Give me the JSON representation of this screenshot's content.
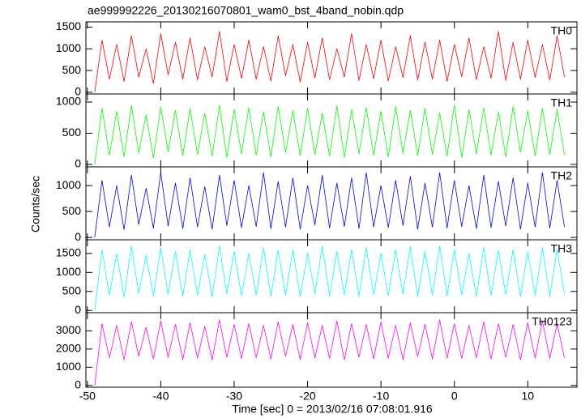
{
  "chart_data": [
    {
      "type": "line",
      "title": "ae999992226_20130216070801_wam0_bst_4band_nobin.qdp",
      "x": [
        -49,
        -48,
        -47,
        -46,
        -45,
        -44,
        -43,
        -42,
        -41,
        -40,
        -39,
        -38,
        -37,
        -36,
        -35,
        -34,
        -33,
        -32,
        -31,
        -30,
        -29,
        -28,
        -27,
        -26,
        -25,
        -24,
        -23,
        -22,
        -21,
        -20,
        -19,
        -18,
        -17,
        -16,
        -15,
        -14,
        -13,
        -12,
        -11,
        -10,
        -9,
        -8,
        -7,
        -6,
        -5,
        -4,
        -3,
        -2,
        -1,
        0,
        1,
        2,
        3,
        4,
        5,
        6,
        7,
        8,
        9,
        10,
        11,
        12,
        13,
        14,
        15
      ],
      "series": [
        {
          "name": "TH0",
          "color": "#ff0000",
          "values": [
            0,
            1200,
            300,
            1100,
            250,
            1300,
            350,
            1000,
            200,
            1350,
            400,
            1150,
            300,
            1250,
            280,
            1050,
            350,
            1400,
            250,
            1100,
            320,
            1200,
            300,
            1050,
            260,
            1300,
            380,
            1100,
            240,
            1150,
            330,
            1250,
            290,
            1000,
            350,
            1350,
            270,
            1100,
            310,
            1200,
            260,
            1050,
            340,
            1300,
            280,
            1150,
            300,
            1200,
            250,
            1100,
            360,
            1250,
            290,
            1050,
            320,
            1400,
            270,
            1150,
            300,
            1200,
            340,
            1100,
            280,
            1300,
            350
          ]
        }
      ],
      "xlim": [
        -50.2,
        16.7
      ],
      "xticks": [
        -50,
        -40,
        -30,
        -20,
        -10,
        0,
        10
      ],
      "ylim": [
        -40,
        1620
      ],
      "yticks": [
        0,
        500,
        1000,
        1500
      ]
    },
    {
      "type": "line",
      "x": [
        -49,
        -48,
        -47,
        -46,
        -45,
        -44,
        -43,
        -42,
        -41,
        -40,
        -39,
        -38,
        -37,
        -36,
        -35,
        -34,
        -33,
        -32,
        -31,
        -30,
        -29,
        -28,
        -27,
        -26,
        -25,
        -24,
        -23,
        -22,
        -21,
        -20,
        -19,
        -18,
        -17,
        -16,
        -15,
        -14,
        -13,
        -12,
        -11,
        -10,
        -9,
        -8,
        -7,
        -6,
        -5,
        -4,
        -3,
        -2,
        -1,
        0,
        1,
        2,
        3,
        4,
        5,
        6,
        7,
        8,
        9,
        10,
        11,
        12,
        13,
        14,
        15
      ],
      "series": [
        {
          "name": "TH1",
          "color": "#00ff00",
          "values": [
            0,
            900,
            150,
            850,
            120,
            950,
            180,
            800,
            100,
            920,
            200,
            870,
            140,
            900,
            160,
            820,
            130,
            950,
            110,
            880,
            170,
            910,
            150,
            840,
            120,
            930,
            190,
            860,
            140,
            900,
            160,
            820,
            130,
            940,
            110,
            880,
            170,
            910,
            150,
            850,
            120,
            930,
            180,
            870,
            140,
            900,
            160,
            820,
            130,
            950,
            110,
            880,
            170,
            910,
            150,
            840,
            120,
            930,
            190,
            860,
            140,
            900,
            160,
            880,
            150
          ]
        }
      ],
      "xlim": [
        -50.2,
        16.7
      ],
      "xticks": [
        -50,
        -40,
        -30,
        -20,
        -10,
        0,
        10
      ],
      "ylim": [
        -40,
        1130
      ],
      "yticks": [
        0,
        500,
        1000
      ]
    },
    {
      "type": "line",
      "y_label": "Counts/sec",
      "x": [
        -49,
        -48,
        -47,
        -46,
        -45,
        -44,
        -43,
        -42,
        -41,
        -40,
        -39,
        -38,
        -37,
        -36,
        -35,
        -34,
        -33,
        -32,
        -31,
        -30,
        -29,
        -28,
        -27,
        -26,
        -25,
        -24,
        -23,
        -22,
        -21,
        -20,
        -19,
        -18,
        -17,
        -16,
        -15,
        -14,
        -13,
        -12,
        -11,
        -10,
        -9,
        -8,
        -7,
        -6,
        -5,
        -4,
        -3,
        -2,
        -1,
        0,
        1,
        2,
        3,
        4,
        5,
        6,
        7,
        8,
        9,
        10,
        11,
        12,
        13,
        14,
        15
      ],
      "series": [
        {
          "name": "TH2",
          "color": "#0000ff",
          "values": [
            0,
            1100,
            200,
            1000,
            150,
            1200,
            250,
            950,
            180,
            1250,
            220,
            1050,
            170,
            1150,
            200,
            980,
            160,
            1200,
            230,
            1100,
            190,
            1000,
            210,
            1250,
            170,
            1080,
            200,
            1150,
            160,
            1000,
            240,
            1200,
            180,
            1050,
            210,
            1150,
            170,
            1250,
            200,
            1000,
            190,
            1100,
            230,
            1180,
            160,
            1050,
            200,
            1250,
            180,
            1100,
            210,
            1000,
            170,
            1200,
            190,
            1080,
            220,
            1150,
            160,
            1050,
            200,
            1250,
            180,
            1100,
            200
          ]
        }
      ],
      "xlim": [
        -50.2,
        16.7
      ],
      "xticks": [
        -50,
        -40,
        -30,
        -20,
        -10,
        0,
        10
      ],
      "ylim": [
        -45,
        1360
      ],
      "yticks": [
        0,
        500,
        1000
      ]
    },
    {
      "type": "line",
      "x": [
        -49,
        -48,
        -47,
        -46,
        -45,
        -44,
        -43,
        -42,
        -41,
        -40,
        -39,
        -38,
        -37,
        -36,
        -35,
        -34,
        -33,
        -32,
        -31,
        -30,
        -29,
        -28,
        -27,
        -26,
        -25,
        -24,
        -23,
        -22,
        -21,
        -20,
        -19,
        -18,
        -17,
        -16,
        -15,
        -14,
        -13,
        -12,
        -11,
        -10,
        -9,
        -8,
        -7,
        -6,
        -5,
        -4,
        -3,
        -2,
        -1,
        0,
        1,
        2,
        3,
        4,
        5,
        6,
        7,
        8,
        9,
        10,
        11,
        12,
        13,
        14,
        15
      ],
      "series": [
        {
          "name": "TH3",
          "color": "#00ffff",
          "values": [
            0,
            1600,
            400,
            1500,
            350,
            1700,
            450,
            1450,
            380,
            1650,
            420,
            1550,
            370,
            1600,
            400,
            1480,
            360,
            1700,
            430,
            1550,
            390,
            1500,
            410,
            1650,
            370,
            1580,
            400,
            1600,
            360,
            1500,
            440,
            1700,
            380,
            1550,
            410,
            1600,
            370,
            1650,
            400,
            1500,
            390,
            1600,
            430,
            1680,
            360,
            1550,
            400,
            1700,
            380,
            1600,
            410,
            1500,
            370,
            1650,
            390,
            1580,
            420,
            1600,
            360,
            1550,
            400,
            1650,
            380,
            1600,
            420
          ]
        }
      ],
      "xlim": [
        -50.2,
        16.7
      ],
      "xticks": [
        -50,
        -40,
        -30,
        -20,
        -10,
        0,
        10
      ],
      "ylim": [
        -60,
        1860
      ],
      "yticks": [
        0,
        500,
        1000,
        1500
      ]
    },
    {
      "type": "line",
      "x_label": "Time [sec] 0 = 2013/02/16 07:08:01.916",
      "x": [
        -49,
        -48,
        -47,
        -46,
        -45,
        -44,
        -43,
        -42,
        -41,
        -40,
        -39,
        -38,
        -37,
        -36,
        -35,
        -34,
        -33,
        -32,
        -31,
        -30,
        -29,
        -28,
        -27,
        -26,
        -25,
        -24,
        -23,
        -22,
        -21,
        -20,
        -19,
        -18,
        -17,
        -16,
        -15,
        -14,
        -13,
        -12,
        -11,
        -10,
        -9,
        -8,
        -7,
        -6,
        -5,
        -4,
        -3,
        -2,
        -1,
        0,
        1,
        2,
        3,
        4,
        5,
        6,
        7,
        8,
        9,
        10,
        11,
        12,
        13,
        14,
        15
      ],
      "series": [
        {
          "name": "TH0123",
          "color": "#ff00ff",
          "values": [
            0,
            3400,
            1500,
            3300,
            1400,
            3500,
            1600,
            3200,
            1450,
            3550,
            1550,
            3350,
            1420,
            3450,
            1500,
            3250,
            1400,
            3600,
            1550,
            3350,
            1480,
            3400,
            1520,
            3300,
            1450,
            3500,
            1600,
            3350,
            1420,
            3450,
            1500,
            3300,
            1480,
            3550,
            1400,
            3400,
            1550,
            3350,
            1460,
            3500,
            1500,
            3300,
            1420,
            3450,
            1580,
            3350,
            1450,
            3600,
            1500,
            3400,
            1480,
            3300,
            1520,
            3500,
            1450,
            3400,
            1550,
            3350,
            1420,
            3450,
            1500,
            3550,
            1480,
            3400,
            1500
          ]
        }
      ],
      "xlim": [
        -50.2,
        16.7
      ],
      "xticks": [
        -50,
        -40,
        -30,
        -20,
        -10,
        0,
        10
      ],
      "ylim": [
        -100,
        4000
      ],
      "yticks": [
        0,
        1000,
        2000,
        3000
      ]
    }
  ]
}
